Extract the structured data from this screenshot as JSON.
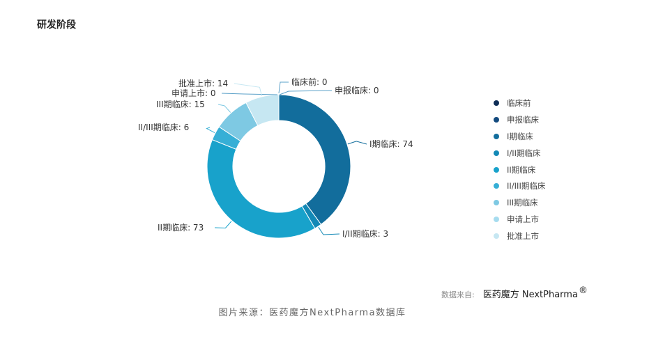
{
  "page_title": "研发阶段",
  "chart_data": {
    "type": "pie",
    "donut": true,
    "categories": [
      "临床前",
      "申报临床",
      "I期临床",
      "I/II期临床",
      "II期临床",
      "II/III期临床",
      "III期临床",
      "申请上市",
      "批准上市"
    ],
    "values": [
      0,
      0,
      74,
      3,
      73,
      6,
      15,
      0,
      14
    ],
    "colors": [
      "#0e2d56",
      "#134a7e",
      "#126d9c",
      "#1389b6",
      "#18a2cb",
      "#36afd6",
      "#7ec9e3",
      "#a6dcef",
      "#c6e7f2"
    ],
    "data_labels": [
      "临床前: 0",
      "申报临床: 0",
      "I期临床: 74",
      "I/II期临床: 3",
      "II期临床: 73",
      "II/III期临床: 6",
      "III期临床: 15",
      "申请上市: 0",
      "批准上市: 14"
    ],
    "legend_position": "right",
    "start": "top",
    "direction": "clockwise"
  },
  "source": {
    "label": "数据来自:",
    "brand": "医药魔方 NextPharma",
    "registered_mark": "®"
  },
  "caption": "图片来源：医药魔方NextPharma数据库"
}
